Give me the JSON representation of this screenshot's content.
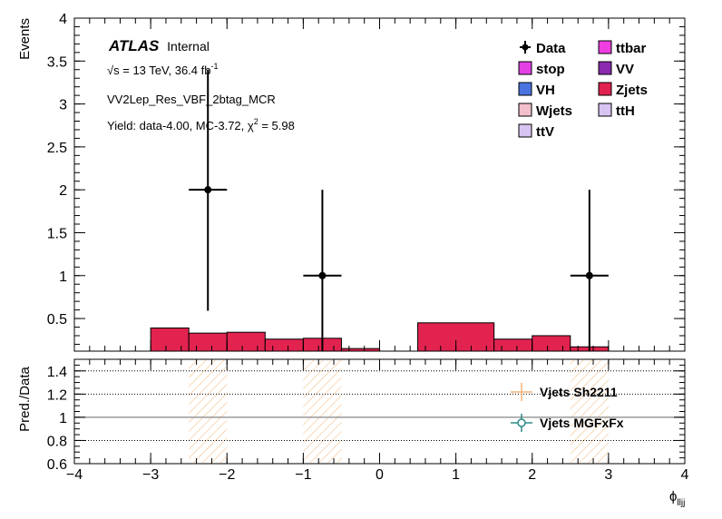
{
  "chart_data": [
    {
      "panel": "main",
      "type": "bar",
      "ylabel": "Events",
      "xlabel": "",
      "xlim": [
        -4,
        4
      ],
      "ylim": [
        0.12,
        4
      ],
      "yticks": [
        0.5,
        1,
        1.5,
        2,
        2.5,
        3,
        3.5,
        4
      ],
      "ytick_labels": [
        "0.5",
        "1",
        "1.5",
        "2",
        "2.5",
        "3",
        "3.5",
        "4"
      ],
      "atlas_label": "ATLAS",
      "atlas_sublabel": "Internal",
      "energy_prefix": "√s = 13 TeV, 36.4 fb",
      "energy_sup": "-1",
      "region": "VV2Lep_Res_VBF_2btag_MCR",
      "yield_prefix": "Yield: data-4.00, MC-3.72, χ",
      "yield_sup": "2",
      "yield_suffix": " = 5.98",
      "legend": [
        {
          "label": "Data",
          "kind": "data",
          "color": "#000000"
        },
        {
          "label": "ttbar",
          "kind": "fill",
          "color": "#ee3ee0"
        },
        {
          "label": "stop",
          "kind": "fill",
          "color": "#e23fe4"
        },
        {
          "label": "VV",
          "kind": "fill",
          "color": "#8a2ab0"
        },
        {
          "label": "VH",
          "kind": "fill",
          "color": "#4a73e0"
        },
        {
          "label": "Zjets",
          "kind": "fill",
          "color": "#e2234f"
        },
        {
          "label": "Wjets",
          "kind": "fill",
          "color": "#f2bfcb"
        },
        {
          "label": "ttH",
          "kind": "fill",
          "color": "#d8c4f2"
        },
        {
          "label": "ttV",
          "kind": "fill",
          "color": "#d8c4f2"
        }
      ],
      "series": [
        {
          "name": "Zjets",
          "color": "#e2234f",
          "bins": [
            {
              "x0": -3.0,
              "x1": -2.5,
              "y": 0.39
            },
            {
              "x0": -2.5,
              "x1": -2.0,
              "y": 0.33
            },
            {
              "x0": -2.0,
              "x1": -1.5,
              "y": 0.34
            },
            {
              "x0": -1.5,
              "x1": -1.0,
              "y": 0.26
            },
            {
              "x0": -1.0,
              "x1": -0.5,
              "y": 0.27
            },
            {
              "x0": -0.5,
              "x1": 0.0,
              "y": 0.15
            },
            {
              "x0": 0.5,
              "x1": 1.5,
              "y": 0.45
            },
            {
              "x0": 1.5,
              "x1": 2.0,
              "y": 0.26
            },
            {
              "x0": 2.0,
              "x1": 2.5,
              "y": 0.3
            },
            {
              "x0": 2.5,
              "x1": 3.0,
              "y": 0.17
            }
          ]
        },
        {
          "name": "Data",
          "points": [
            {
              "x": -2.25,
              "y": 2,
              "xerr": 0.25,
              "ylo": 0.59,
              "yhi": 3.4
            },
            {
              "x": -0.75,
              "y": 1,
              "xerr": 0.25,
              "ylo": 0.0,
              "yhi": 2.0
            },
            {
              "x": 2.75,
              "y": 1,
              "xerr": 0.25,
              "ylo": 0.0,
              "yhi": 2.0
            }
          ]
        }
      ]
    },
    {
      "panel": "ratio",
      "type": "scatter",
      "ylabel": "Pred./Data",
      "xlabel": "ϕ",
      "xlabel_sub": "lljj",
      "xlim": [
        -4,
        4
      ],
      "ylim": [
        0.6,
        1.5
      ],
      "yticks": [
        0.6,
        0.8,
        1,
        1.2,
        1.4
      ],
      "ytick_labels": [
        "0.6",
        "0.8",
        "1",
        "1.2",
        "1.4"
      ],
      "xticks": [
        -4,
        -3,
        -2,
        -1,
        0,
        1,
        2,
        3,
        4
      ],
      "xtick_labels": [
        "−4",
        "−3",
        "−2",
        "−1",
        "0",
        "1",
        "2",
        "3",
        "4"
      ],
      "dotted_gridlines": [
        0.8,
        1.2,
        1.4
      ],
      "reference_line": 1,
      "uncertainty_bands": [
        {
          "x0": -2.5,
          "x1": -2.0
        },
        {
          "x0": -1.0,
          "x1": -0.5
        },
        {
          "x0": 2.5,
          "x1": 3.0
        }
      ],
      "legend": [
        {
          "label": "Vjets Sh2211",
          "color": "#f4b27a",
          "marker": "cross"
        },
        {
          "label": "Vjets MGFxFx",
          "color": "#2e8b87",
          "marker": "open-circle"
        }
      ]
    }
  ]
}
